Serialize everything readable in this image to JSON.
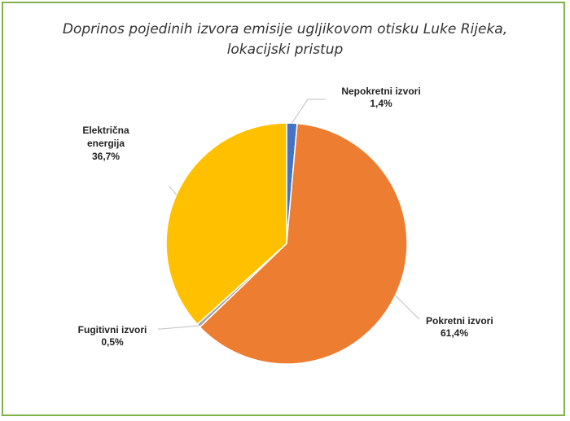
{
  "chart_data": {
    "type": "pie",
    "title_line1": "Doprinos pojedinih izvora emisije ugljikovom otisku Luke Rijeka,",
    "title_line2": "lokacijski pristup",
    "slices": [
      {
        "name": "Nepokretni izvori",
        "value": 1.4,
        "value_label": "1,4%",
        "color": "#4472c4"
      },
      {
        "name": "Pokretni izvori",
        "value": 61.4,
        "value_label": "61,4%",
        "color": "#ed7d31"
      },
      {
        "name": "Fugitivni izvori",
        "value": 0.5,
        "value_label": "0,5%",
        "color": "#a5a5a5"
      },
      {
        "name": "Električna energija",
        "name_lines": [
          "Električna",
          "energija"
        ],
        "value": 36.7,
        "value_label": "36,7%",
        "color": "#ffc000"
      }
    ]
  },
  "frame_color": "#7fb24a"
}
